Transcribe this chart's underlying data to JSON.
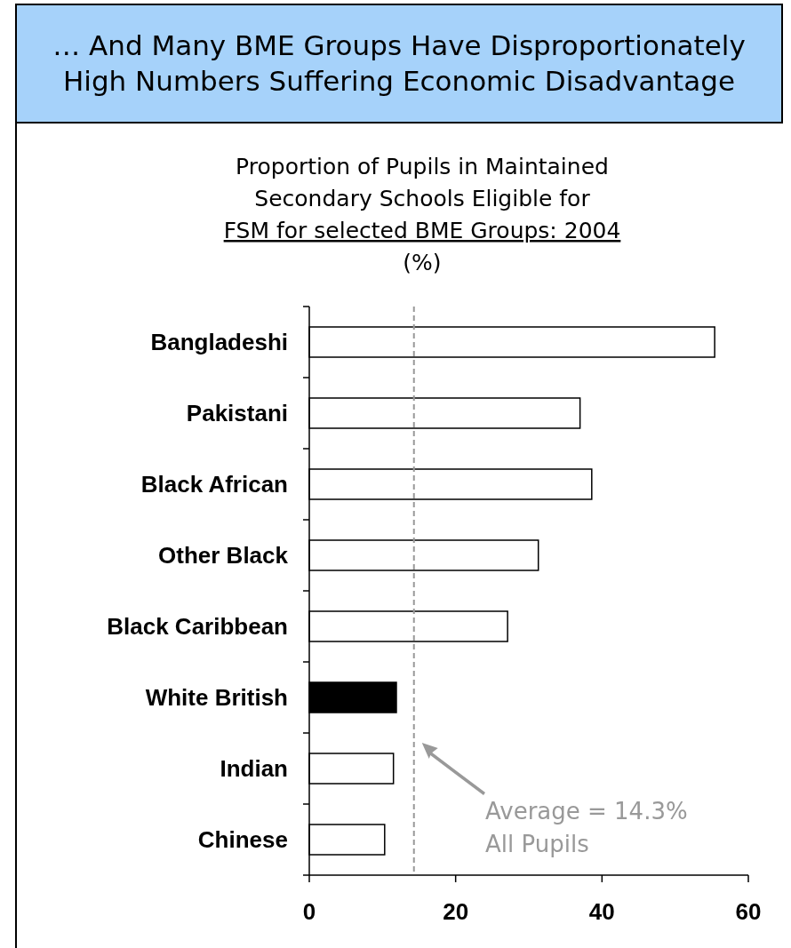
{
  "chart_data": {
    "type": "bar",
    "orientation": "horizontal",
    "title": "… And Many BME Groups Have Disproportionately High Numbers Suffering Economic Disadvantage",
    "subtitle": "Proportion of Pupils in Maintained\nSecondary Schools Eligible for\nFSM for selected BME Groups: 2004\n(%)",
    "categories": [
      "Bangladeshi",
      "Pakistani",
      "Black African",
      "Other Black",
      "Black Caribbean",
      "White British",
      "Indian",
      "Chinese"
    ],
    "values": [
      55.4,
      37.0,
      38.6,
      31.3,
      27.1,
      11.9,
      11.5,
      10.3
    ],
    "colors": [
      "#ffffff",
      "#ffffff",
      "#ffffff",
      "#ffffff",
      "#ffffff",
      "#000000",
      "#ffffff",
      "#ffffff"
    ],
    "xlim": [
      0,
      60
    ],
    "xticks": [
      0,
      20,
      40,
      60
    ],
    "ref_lines": [
      {
        "axis": "x",
        "value": 14.3,
        "label": "Average = 14.3%\nAll Pupils",
        "color": "#999999",
        "line_style": "dashed"
      }
    ]
  }
}
